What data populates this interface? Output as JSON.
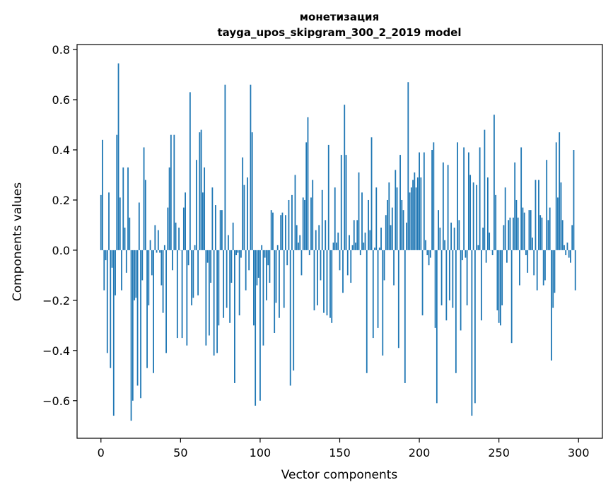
{
  "chart_data": {
    "type": "bar",
    "title": "монетизация",
    "subtitle": "tayga_upos_skipgram_300_2_2019 model",
    "xlabel": "Vector components",
    "ylabel": "Components values",
    "xlim": [
      -15,
      315
    ],
    "ylim": [
      -0.75,
      0.82
    ],
    "xticks": [
      0,
      50,
      100,
      150,
      200,
      250,
      300
    ],
    "yticks": [
      -0.6,
      -0.4,
      -0.2,
      0.0,
      0.2,
      0.4,
      0.6,
      0.8
    ],
    "ytick_labels": [
      "−0.6",
      "−0.4",
      "−0.2",
      "0.0",
      "0.2",
      "0.4",
      "0.6",
      "0.8"
    ],
    "xtick_labels": [
      "0",
      "50",
      "100",
      "150",
      "200",
      "250",
      "300"
    ],
    "bar_color": "#1f77b4",
    "grid": false,
    "values": [
      0.22,
      0.44,
      -0.16,
      -0.04,
      -0.41,
      0.23,
      -0.47,
      -0.07,
      -0.66,
      -0.18,
      0.46,
      0.745,
      0.21,
      -0.16,
      0.33,
      0.09,
      -0.09,
      0.33,
      0.13,
      -0.68,
      -0.6,
      -0.2,
      -0.19,
      -0.54,
      0.19,
      -0.59,
      -0.12,
      0.41,
      0.28,
      -0.47,
      -0.22,
      0.04,
      -0.1,
      -0.49,
      0.1,
      -0.01,
      0.08,
      -0.01,
      -0.14,
      -0.25,
      0.02,
      -0.41,
      0.17,
      0.33,
      0.46,
      -0.08,
      0.46,
      0.11,
      -0.35,
      0.09,
      0.0,
      -0.35,
      0.17,
      0.23,
      -0.38,
      -0.06,
      0.63,
      -0.22,
      -0.19,
      0.02,
      0.36,
      -0.18,
      0.47,
      0.48,
      0.23,
      0.33,
      -0.38,
      -0.05,
      -0.34,
      -0.13,
      0.25,
      -0.42,
      0.18,
      -0.41,
      -0.3,
      0.16,
      0.16,
      -0.27,
      0.66,
      -0.23,
      0.06,
      -0.29,
      -0.13,
      0.11,
      -0.53,
      -0.02,
      -0.01,
      -0.26,
      -0.03,
      0.37,
      0.26,
      -0.16,
      0.29,
      -0.08,
      0.66,
      0.47,
      -0.3,
      -0.62,
      -0.14,
      -0.11,
      -0.6,
      0.02,
      -0.38,
      -0.03,
      -0.2,
      -0.06,
      -0.13,
      0.16,
      0.15,
      -0.33,
      -0.21,
      0.02,
      -0.27,
      0.14,
      0.15,
      -0.23,
      0.14,
      -0.06,
      0.2,
      -0.54,
      0.22,
      -0.48,
      0.3,
      0.1,
      0.03,
      0.06,
      -0.1,
      0.21,
      0.2,
      0.43,
      0.53,
      -0.02,
      0.21,
      0.28,
      -0.24,
      0.08,
      -0.22,
      0.1,
      -0.12,
      0.24,
      -0.25,
      0.12,
      -0.26,
      0.42,
      -0.27,
      -0.29,
      0.03,
      0.25,
      0.03,
      0.07,
      -0.08,
      0.38,
      -0.17,
      0.58,
      0.38,
      -0.1,
      0.06,
      -0.13,
      0.02,
      0.12,
      0.03,
      0.12,
      0.31,
      -0.02,
      0.23,
      0.03,
      0.07,
      -0.49,
      0.2,
      0.08,
      0.45,
      -0.35,
      0.01,
      0.25,
      -0.31,
      0.01,
      0.09,
      -0.42,
      -0.12,
      0.14,
      0.2,
      0.27,
      0.1,
      0.17,
      -0.14,
      0.32,
      0.25,
      -0.39,
      0.38,
      0.2,
      0.16,
      -0.53,
      0.11,
      0.67,
      0.23,
      0.25,
      0.28,
      0.31,
      0.25,
      0.29,
      0.39,
      0.29,
      -0.26,
      0.39,
      0.04,
      -0.02,
      -0.06,
      -0.03,
      0.4,
      0.43,
      -0.31,
      -0.61,
      0.16,
      0.09,
      -0.22,
      0.35,
      0.04,
      -0.28,
      0.34,
      -0.2,
      0.11,
      -0.23,
      0.09,
      -0.49,
      0.43,
      0.12,
      -0.32,
      -0.04,
      0.41,
      -0.03,
      -0.22,
      0.39,
      0.3,
      -0.66,
      0.27,
      -0.61,
      0.26,
      0.02,
      0.41,
      -0.28,
      0.09,
      0.48,
      -0.05,
      0.29,
      0.07,
      0.0,
      -0.02,
      0.54,
      0.22,
      -0.24,
      -0.29,
      -0.3,
      -0.22,
      0.1,
      0.25,
      -0.05,
      0.12,
      0.13,
      -0.37,
      0.13,
      0.35,
      0.2,
      0.13,
      -0.14,
      0.41,
      0.17,
      0.15,
      -0.02,
      -0.09,
      0.16,
      0.16,
      0.05,
      -0.1,
      0.28,
      -0.16,
      0.28,
      0.14,
      0.13,
      -0.14,
      -0.12,
      0.36,
      0.12,
      0.17,
      -0.44,
      -0.23,
      -0.17,
      0.43,
      0.21,
      0.47,
      0.27,
      0.12,
      0.02,
      -0.02,
      0.03,
      -0.03,
      -0.05,
      0.1,
      0.4,
      -0.16
    ]
  }
}
